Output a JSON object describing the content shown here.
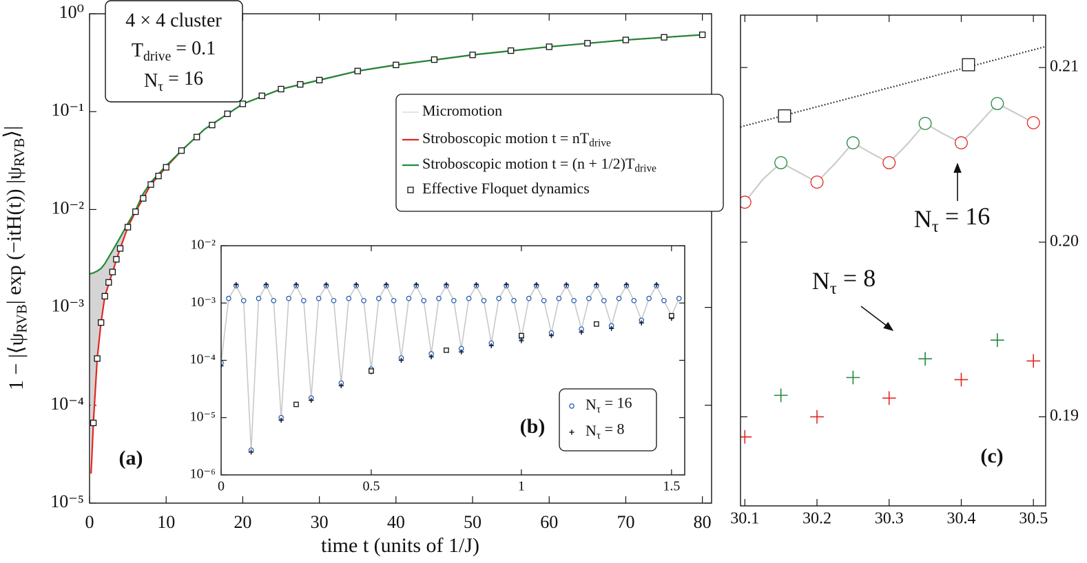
{
  "chart_data": [
    {
      "type": "line",
      "panel_label": "(a)",
      "xlabel": "time t (units of 1/J)",
      "ylabel": [
        "1 − |⟨ψ",
        "RVB",
        "| exp (−itH(t)) |ψ",
        "RVB",
        "⟩|"
      ],
      "annotation_box": [
        "4 × 4 cluster",
        [
          "T",
          "drive",
          " = 0.1"
        ],
        [
          "N",
          "τ",
          " = 16"
        ]
      ],
      "log_y": true,
      "xlim": [
        0,
        81.2
      ],
      "xticks": [
        0,
        10,
        20,
        30,
        40,
        50,
        60,
        70,
        80
      ],
      "ylim": [
        1e-05,
        1
      ],
      "yticks": [
        {
          "value": 1e-05,
          "label": "10⁻⁵"
        },
        {
          "value": 0.0001,
          "label": "10⁻⁴"
        },
        {
          "value": 0.001,
          "label": "10⁻³"
        },
        {
          "value": 0.01,
          "label": "10⁻²"
        },
        {
          "value": 0.1,
          "label": "10⁻¹"
        },
        {
          "value": 1,
          "label": "10⁰"
        }
      ],
      "series": [
        {
          "name": "Micromotion",
          "color": "#d4d4d4",
          "fill_between": [
            2,
            1
          ]
        },
        {
          "name": [
            "Stroboscopic motion t = nT",
            "drive"
          ],
          "color": "#e3261f",
          "line": true,
          "x": [
            0.2,
            0.5,
            1,
            1.5,
            2,
            3,
            4,
            5,
            6,
            7,
            8,
            10,
            12,
            15,
            20,
            25,
            30,
            35,
            40,
            50,
            60,
            70,
            80
          ],
          "values": [
            2e-05,
            6.6e-05,
            0.0003,
            0.0007,
            0.0013,
            0.0023,
            0.004,
            0.0066,
            0.0095,
            0.013,
            0.018,
            0.027,
            0.04,
            0.066,
            0.12,
            0.17,
            0.21,
            0.26,
            0.3,
            0.38,
            0.46,
            0.54,
            0.61
          ]
        },
        {
          "name": [
            "Stroboscopic motion t = (n + 1/2)T",
            "drive"
          ],
          "color": "#1f8a3b",
          "line": true,
          "x": [
            0,
            0.5,
            1,
            1.5,
            2,
            3,
            4,
            5,
            6,
            7,
            8,
            10,
            12,
            15,
            20,
            25,
            30,
            35,
            40,
            50,
            60,
            70,
            80
          ],
          "values": [
            0.0022,
            0.00225,
            0.00235,
            0.0025,
            0.0028,
            0.0038,
            0.0052,
            0.0072,
            0.0098,
            0.0145,
            0.019,
            0.028,
            0.04,
            0.066,
            0.12,
            0.17,
            0.21,
            0.26,
            0.3,
            0.38,
            0.46,
            0.54,
            0.61
          ]
        },
        {
          "name": "Effective Floquet dynamics",
          "color": "#111111",
          "marker": "square",
          "x": [
            0.5,
            1,
            1.5,
            2,
            2.5,
            3,
            3.5,
            4,
            5,
            6,
            7,
            8,
            9,
            10,
            12,
            14,
            16,
            18,
            20,
            22.5,
            25,
            27.5,
            30,
            35,
            40,
            45,
            50,
            55,
            60,
            65,
            70,
            75,
            80
          ],
          "values": [
            6.6e-05,
            0.0003,
            0.0007,
            0.0013,
            0.0018,
            0.0023,
            0.0031,
            0.004,
            0.0066,
            0.0095,
            0.013,
            0.018,
            0.022,
            0.027,
            0.04,
            0.055,
            0.073,
            0.095,
            0.12,
            0.145,
            0.17,
            0.19,
            0.21,
            0.26,
            0.3,
            0.34,
            0.38,
            0.42,
            0.46,
            0.5,
            0.54,
            0.575,
            0.61
          ]
        }
      ]
    },
    {
      "type": "line",
      "panel_label": "(b)",
      "log_y": true,
      "xlim": [
        0,
        1.544
      ],
      "xticks": [
        0,
        0.5,
        1,
        1.5
      ],
      "ylim": [
        1e-06,
        0.01
      ],
      "yticks": [
        {
          "value": 1e-06,
          "label": "10⁻⁶"
        },
        {
          "value": 1e-05,
          "label": "10⁻⁵"
        },
        {
          "value": 0.0001,
          "label": "10⁻⁴"
        },
        {
          "value": 0.001,
          "label": "10⁻³"
        },
        {
          "value": 0.01,
          "label": "10⁻²"
        }
      ],
      "series": [
        {
          "name": [
            "N",
            "τ",
            " = 16"
          ],
          "color": "#2a5fb0",
          "line_color": "#c8c8c8",
          "line": true,
          "marker": "circle",
          "x": [
            0,
            0.025,
            0.05,
            0.075,
            0.1,
            0.125,
            0.15,
            0.175,
            0.2,
            0.225,
            0.25,
            0.275,
            0.3,
            0.325,
            0.35,
            0.375,
            0.4,
            0.425,
            0.45,
            0.475,
            0.5,
            0.525,
            0.55,
            0.575,
            0.6,
            0.625,
            0.65,
            0.675,
            0.7,
            0.725,
            0.75,
            0.775,
            0.8,
            0.825,
            0.85,
            0.875,
            0.9,
            0.925,
            0.95,
            0.975,
            1,
            1.025,
            1.05,
            1.075,
            1.1,
            1.125,
            1.15,
            1.175,
            1.2,
            1.225,
            1.25,
            1.275,
            1.3,
            1.325,
            1.35,
            1.375,
            1.4,
            1.425,
            1.45,
            1.475,
            1.5,
            1.525
          ],
          "values": [
            9e-05,
            0.0012,
            0.002,
            0.0011,
            2.7e-06,
            0.0012,
            0.002,
            0.0011,
            1e-05,
            0.0012,
            0.002,
            0.0011,
            2.2e-05,
            0.0012,
            0.002,
            0.0011,
            4e-05,
            0.0012,
            0.002,
            0.0011,
            7e-05,
            0.0012,
            0.002,
            0.0011,
            0.00011,
            0.0012,
            0.002,
            0.0011,
            0.00013,
            0.0012,
            0.002,
            0.0011,
            0.00016,
            0.0012,
            0.002,
            0.0011,
            0.0002,
            0.0012,
            0.002,
            0.0011,
            0.00025,
            0.0012,
            0.002,
            0.0011,
            0.0003,
            0.0012,
            0.002,
            0.0011,
            0.00035,
            0.0012,
            0.002,
            0.0011,
            0.0004,
            0.0012,
            0.002,
            0.0011,
            0.0005,
            0.0012,
            0.002,
            0.0011,
            0.0006,
            0.0012
          ]
        },
        {
          "name": [
            "N",
            "τ",
            " = 8"
          ],
          "color": "#1a1f3a",
          "marker": "plus",
          "x": [
            0,
            0.05,
            0.1,
            0.15,
            0.2,
            0.25,
            0.3,
            0.35,
            0.4,
            0.45,
            0.5,
            0.55,
            0.6,
            0.65,
            0.7,
            0.75,
            0.8,
            0.85,
            0.9,
            0.95,
            1,
            1.05,
            1.1,
            1.15,
            1.2,
            1.25,
            1.3,
            1.35,
            1.4,
            1.45,
            1.5
          ],
          "values": [
            8e-05,
            0.0021,
            2.5e-06,
            0.0021,
            9e-06,
            0.0021,
            2e-05,
            0.0021,
            3.6e-05,
            0.0021,
            6.3e-05,
            0.0021,
            0.0001,
            0.0021,
            0.000115,
            0.0021,
            0.00014,
            0.0021,
            0.00018,
            0.0021,
            0.00022,
            0.0021,
            0.00027,
            0.0021,
            0.00031,
            0.0021,
            0.00036,
            0.0021,
            0.00045,
            0.0021,
            0.00054
          ]
        },
        {
          "color": "#111111",
          "marker": "square",
          "x": [
            0.25,
            0.5,
            0.75,
            1,
            1.25,
            1.5
          ],
          "values": [
            1.7e-05,
            6.5e-05,
            0.00015,
            0.00027,
            0.00043,
            0.0006
          ]
        }
      ]
    },
    {
      "type": "line",
      "panel_label": "(c)",
      "annotations": [
        [
          "N",
          "τ",
          " = 16"
        ],
        [
          "N",
          "τ",
          " = 8"
        ]
      ],
      "xlim": [
        30.094,
        30.517
      ],
      "xticks": [
        30.1,
        30.2,
        30.3,
        30.4,
        30.5
      ],
      "ylim": [
        0.1849,
        0.213
      ],
      "yticks": [
        0.19,
        {
          "value": 0.2,
          "label": "0.20"
        },
        0.21
      ],
      "series": [
        {
          "color": "#cccccc",
          "line": true,
          "x": [
            30.1,
            30.125,
            30.15,
            30.175,
            30.2,
            30.225,
            30.25,
            30.275,
            30.3,
            30.325,
            30.35,
            30.375,
            30.4,
            30.425,
            30.45,
            30.475,
            30.5
          ],
          "values": [
            0.2023,
            0.2036,
            0.20455,
            0.204,
            0.20344,
            0.2045,
            0.20569,
            0.2051,
            0.20455,
            0.2056,
            0.2068,
            0.2062,
            0.20569,
            0.2068,
            0.20794,
            0.2074,
            0.20684
          ]
        },
        {
          "color": "#111111",
          "line": true,
          "dash": "dotted",
          "x": [
            30.094,
            30.517
          ],
          "values": [
            0.2066,
            0.2112
          ]
        },
        {
          "color": "#e3261f",
          "marker": "circle",
          "x": [
            30.1,
            30.2,
            30.3,
            30.4,
            30.5
          ],
          "values": [
            0.20229,
            0.20344,
            0.20455,
            0.20569,
            0.20684
          ]
        },
        {
          "color": "#1f8a3b",
          "marker": "circle",
          "x": [
            30.15,
            30.25,
            30.35,
            30.45
          ],
          "values": [
            0.20455,
            0.20569,
            0.2068,
            0.20794
          ]
        },
        {
          "color": "#111111",
          "marker": "square",
          "x": [
            30.155,
            30.41
          ],
          "values": [
            0.20723,
            0.21016
          ]
        },
        {
          "color": "#e3261f",
          "marker": "plus",
          "x": [
            30.1,
            30.2,
            30.3,
            30.4,
            30.5
          ],
          "values": [
            0.18885,
            0.19,
            0.19107,
            0.19213,
            0.1932
          ]
        },
        {
          "color": "#1f8a3b",
          "marker": "plus",
          "x": [
            30.15,
            30.25,
            30.35,
            30.45
          ],
          "values": [
            0.19123,
            0.19225,
            0.19332,
            0.19439
          ]
        }
      ]
    }
  ]
}
